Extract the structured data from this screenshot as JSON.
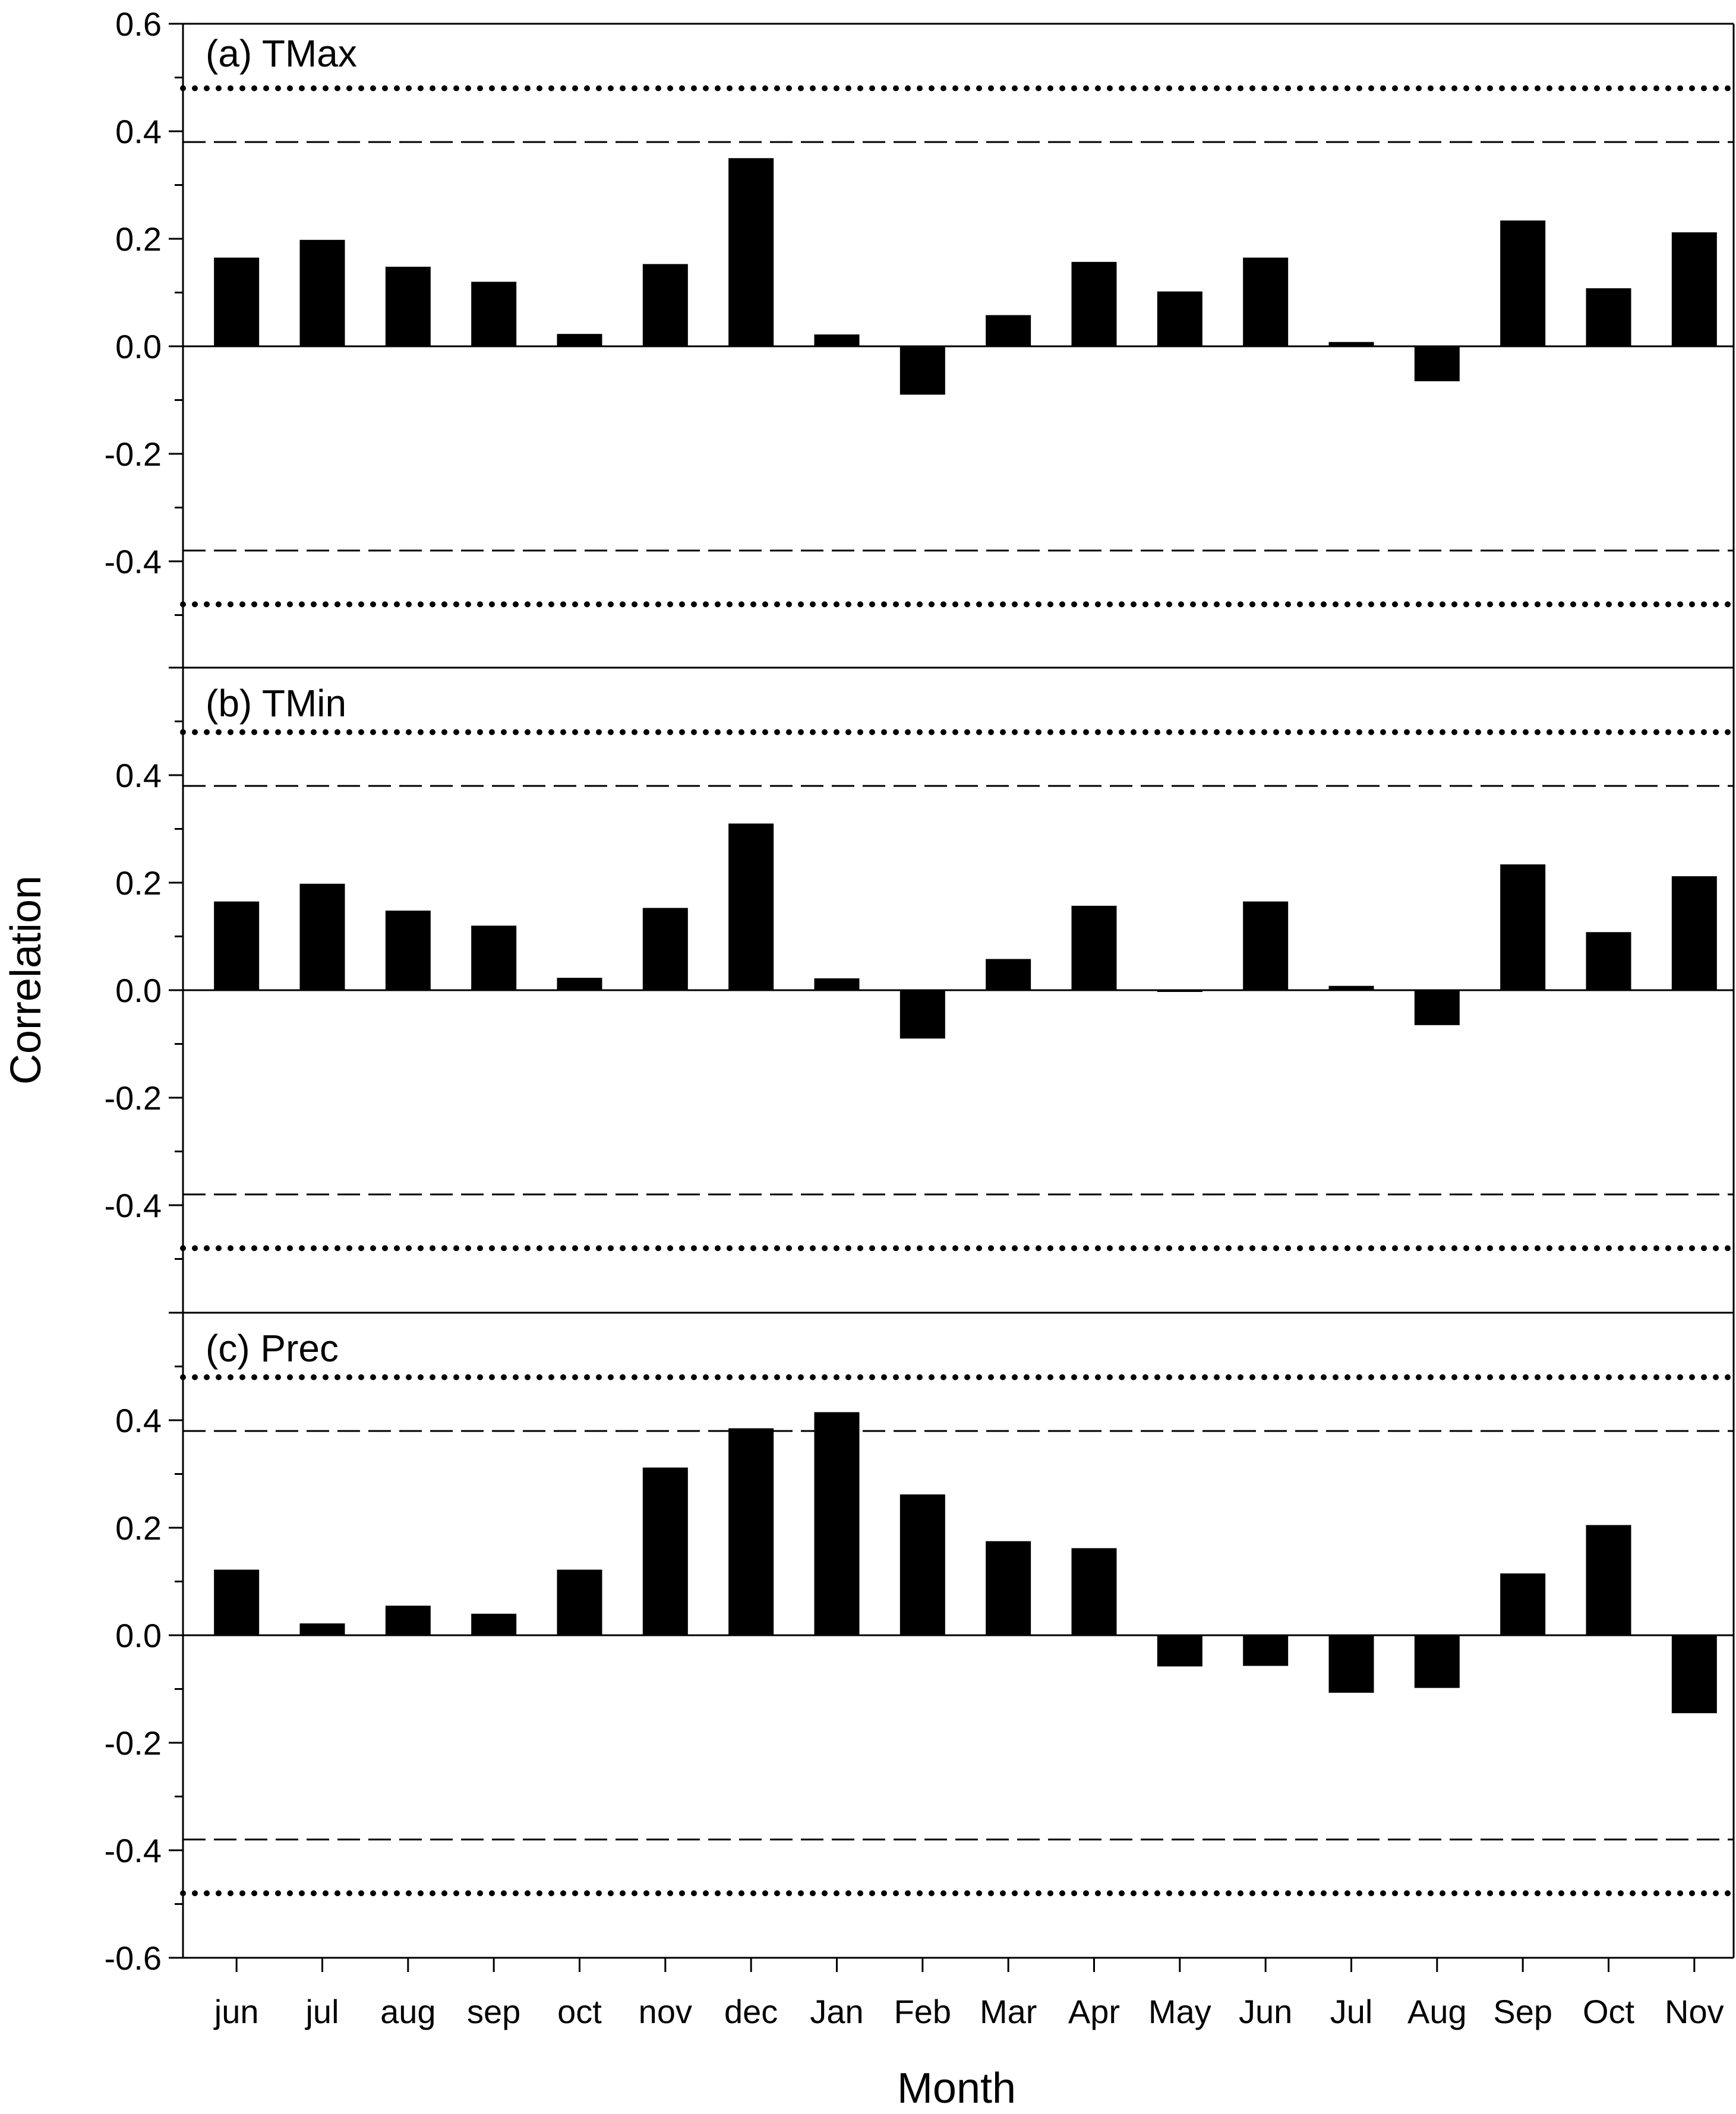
{
  "chart_data": {
    "type": "bar",
    "xlabel": "Month",
    "ylabel": "Correlation",
    "ylim": [
      -0.6,
      0.6
    ],
    "categories": [
      "jun",
      "jul",
      "aug",
      "sep",
      "oct",
      "nov",
      "dec",
      "Jan",
      "Feb",
      "Mar",
      "Apr",
      "May",
      "Jun",
      "Jul",
      "Aug",
      "Sep",
      "Oct",
      "Nov"
    ],
    "y_ticks": [
      "0.6",
      "0.4",
      "0.2",
      "0.0",
      "-0.2",
      "-0.4",
      "-0.6"
    ],
    "y_tick_values": [
      0.6,
      0.4,
      0.2,
      0.0,
      -0.2,
      -0.4,
      -0.6
    ],
    "reference_lines": [
      {
        "style": "dotted",
        "value": 0.48
      },
      {
        "style": "dashed",
        "value": 0.38
      },
      {
        "style": "dashed",
        "value": -0.38
      },
      {
        "style": "dotted",
        "value": -0.48
      }
    ],
    "bar_color": "#000000",
    "panels": [
      {
        "title": "(a) TMax",
        "values": [
          0.165,
          0.198,
          0.148,
          0.12,
          0.023,
          0.153,
          0.35,
          0.022,
          -0.09,
          0.058,
          0.157,
          0.102,
          0.165,
          0.008,
          -0.065,
          0.234,
          0.108,
          0.212
        ]
      },
      {
        "title": "(b) TMin",
        "values": [
          0.165,
          0.198,
          0.148,
          0.12,
          0.023,
          0.153,
          0.31,
          0.022,
          -0.09,
          0.058,
          0.157,
          0.0,
          0.165,
          0.008,
          -0.065,
          0.234,
          0.108,
          0.212
        ]
      },
      {
        "title": "(c) Prec",
        "values": [
          0.122,
          0.022,
          0.055,
          0.04,
          0.122,
          0.312,
          0.385,
          0.415,
          0.262,
          0.175,
          0.162,
          -0.058,
          -0.057,
          -0.107,
          -0.098,
          0.115,
          0.205,
          -0.145
        ]
      }
    ]
  }
}
